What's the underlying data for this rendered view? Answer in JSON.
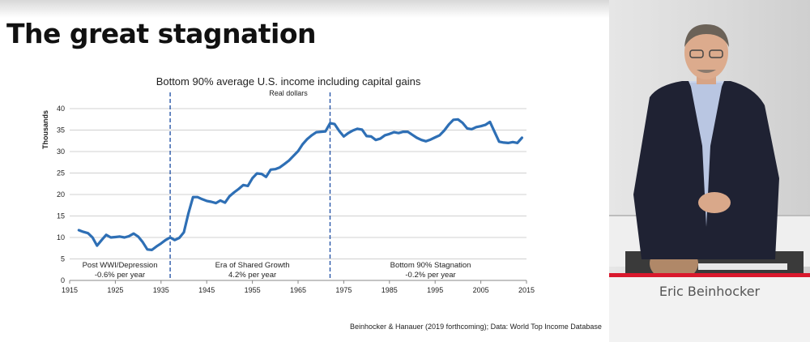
{
  "slide": {
    "title": "The great stagnation",
    "source": "Beinhocker & Hanauer (2019 forthcoming); Data:  World Top Income Database"
  },
  "chart_data": {
    "type": "line",
    "title": "Bottom 90% average U.S. income including capital gains",
    "subtitle": "Real dollars",
    "xlabel": "",
    "ylabel": "Thousands",
    "xlim": [
      1915,
      2015
    ],
    "ylim": [
      0,
      40
    ],
    "x_ticks": [
      "1915",
      "1925",
      "1935",
      "1945",
      "1955",
      "1965",
      "1975",
      "1985",
      "1995",
      "2005",
      "2015"
    ],
    "y_ticks": [
      "0",
      "5",
      "10",
      "15",
      "20",
      "25",
      "30",
      "35",
      "40"
    ],
    "grid": true,
    "line_color": "#2e6fb5",
    "series": [
      {
        "x": [
          1917,
          1918,
          1919,
          1920,
          1921,
          1922,
          1923,
          1924,
          1925,
          1926,
          1927,
          1928,
          1929,
          1930,
          1931,
          1932,
          1933,
          1934,
          1935,
          1936,
          1937,
          1938,
          1939,
          1940,
          1941,
          1942,
          1943,
          1944,
          1945,
          1946,
          1947,
          1948,
          1949,
          1950,
          1951,
          1952,
          1953,
          1954,
          1955,
          1956,
          1957,
          1958,
          1959,
          1960,
          1961,
          1962,
          1963,
          1964,
          1965,
          1966,
          1967,
          1968,
          1969,
          1970,
          1971,
          1972,
          1973,
          1974,
          1975,
          1976,
          1977,
          1978,
          1979,
          1980,
          1981,
          1982,
          1983,
          1984,
          1985,
          1986,
          1987,
          1988,
          1989,
          1990,
          1991,
          1992,
          1993,
          1994,
          1995,
          1996,
          1997,
          1998,
          1999,
          2000,
          2001,
          2002,
          2003,
          2004,
          2005,
          2006,
          2007,
          2008,
          2009,
          2010,
          2011,
          2012,
          2013,
          2014
        ],
        "y": [
          11.7,
          11.3,
          11.0,
          10.0,
          8.1,
          9.4,
          10.6,
          10.0,
          10.1,
          10.2,
          10.0,
          10.3,
          10.9,
          10.2,
          8.9,
          7.2,
          7.1,
          7.9,
          8.6,
          9.4,
          10.0,
          9.4,
          9.9,
          11.2,
          15.6,
          19.4,
          19.4,
          18.9,
          18.5,
          18.3,
          18.0,
          18.6,
          18.1,
          19.6,
          20.5,
          21.3,
          22.2,
          22.0,
          23.8,
          24.9,
          24.8,
          24.1,
          25.8,
          25.9,
          26.3,
          27.1,
          27.9,
          29.0,
          30.1,
          31.7,
          32.9,
          33.8,
          34.5,
          34.6,
          34.7,
          36.6,
          36.4,
          34.8,
          33.5,
          34.3,
          34.9,
          35.3,
          35.1,
          33.6,
          33.5,
          32.7,
          33.0,
          33.8,
          34.1,
          34.5,
          34.3,
          34.6,
          34.6,
          33.9,
          33.2,
          32.7,
          32.4,
          32.8,
          33.3,
          33.8,
          34.9,
          36.3,
          37.4,
          37.5,
          36.7,
          35.4,
          35.2,
          35.7,
          35.9,
          36.2,
          36.9,
          34.6,
          32.3,
          32.1,
          32.0,
          32.2,
          32.0,
          33.2
        ]
      }
    ],
    "divider_years": [
      1937,
      1972
    ],
    "annotations": [
      {
        "label": "Post WWI/Depression",
        "rate": "-0.6% per year",
        "x": 1926
      },
      {
        "label": "Era of Shared Growth",
        "rate": "4.2% per year",
        "x": 1955
      },
      {
        "label": "Bottom 90% Stagnation",
        "rate": "-0.2% per year",
        "x": 1994
      }
    ]
  },
  "video": {
    "speaker_name": "Eric Beinhocker"
  }
}
